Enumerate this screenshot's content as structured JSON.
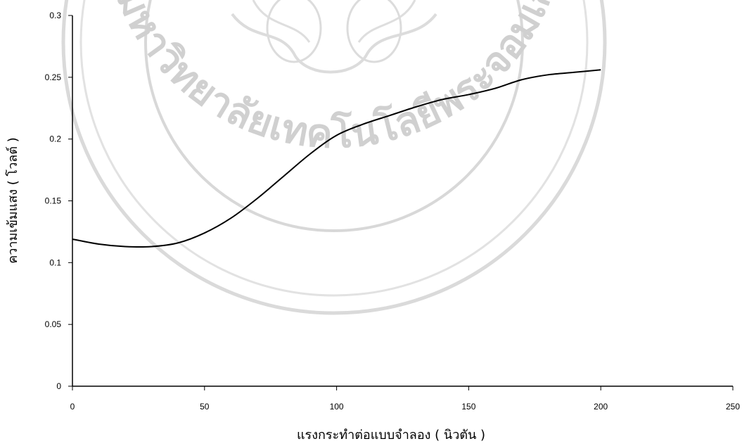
{
  "chart_data": {
    "type": "line",
    "title": "",
    "xlabel": "แรงกระทำต่อแบบจำลอง ( นิวตัน )",
    "ylabel": "ความเข้มแสง ( โวลต์ )",
    "xlim": [
      0,
      250
    ],
    "ylim": [
      0,
      0.3
    ],
    "x_ticks": [
      0,
      50,
      100,
      150,
      200,
      250
    ],
    "y_ticks": [
      0,
      0.05,
      0.1,
      0.15,
      0.2,
      0.25,
      0.3
    ],
    "x_tick_labels": [
      "0",
      "50",
      "100",
      "150",
      "200",
      "250"
    ],
    "y_tick_labels": [
      "0",
      "0.05",
      "0.1",
      "0.15",
      "0.2",
      "0.25",
      "0.3"
    ],
    "grid": false,
    "legend": "none",
    "series": [
      {
        "color": "#000000",
        "x": [
          0,
          10,
          20,
          30,
          40,
          50,
          60,
          70,
          80,
          90,
          100,
          110,
          120,
          130,
          140,
          150,
          160,
          170,
          180,
          190,
          200
        ],
        "y": [
          0.119,
          0.115,
          0.113,
          0.113,
          0.116,
          0.124,
          0.136,
          0.152,
          0.17,
          0.188,
          0.203,
          0.212,
          0.219,
          0.226,
          0.232,
          0.236,
          0.241,
          0.248,
          0.252,
          0.254,
          0.256
        ]
      }
    ]
  },
  "watermark": {
    "text": "มหาวิทยาลัยเทคโนโลยีพระจอมเกล้าเจ้าคุณทหารลาดกระบัง",
    "color": "#d4d4d4"
  }
}
